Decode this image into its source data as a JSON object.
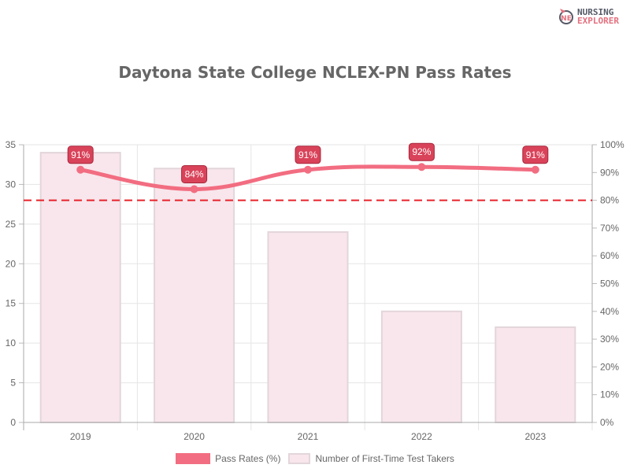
{
  "logo": {
    "line1": "NURSING",
    "line2": "EXPLORER"
  },
  "title": "Daytona State College NCLEX-PN Pass Rates",
  "legend": {
    "line_label": "Pass Rates (%)",
    "bar_label": "Number of First-Time Test Takers"
  },
  "colors": {
    "line": "#f26d81",
    "bar_fill": "#f8e6ec",
    "bar_border": "#e3d6da",
    "label_bg": "#d9435a",
    "reference": "#e8222b"
  },
  "chart_data": {
    "type": "bar+line",
    "title": "Daytona State College NCLEX-PN Pass Rates",
    "categories": [
      "2019",
      "2020",
      "2021",
      "2022",
      "2023"
    ],
    "series": [
      {
        "name": "Number of First-Time Test Takers",
        "type": "bar",
        "axis": "left",
        "values": [
          34,
          32,
          24,
          14,
          12
        ]
      },
      {
        "name": "Pass Rates (%)",
        "type": "line",
        "axis": "right",
        "values": [
          91,
          84,
          91,
          92,
          91
        ],
        "labels": [
          "91%",
          "84%",
          "91%",
          "92%",
          "91%"
        ]
      }
    ],
    "reference_line": {
      "axis": "right",
      "value": 80,
      "style": "dashed"
    },
    "left_axis": {
      "ylim": [
        0,
        35
      ],
      "ticks": [
        "0",
        "5",
        "10",
        "15",
        "20",
        "25",
        "30",
        "35"
      ]
    },
    "right_axis": {
      "ylim": [
        0,
        100
      ],
      "ticks": [
        "0%",
        "10%",
        "20%",
        "30%",
        "40%",
        "50%",
        "60%",
        "70%",
        "80%",
        "90%",
        "100%"
      ]
    },
    "xlabel": "",
    "ylabel": "",
    "grid": true,
    "legend_position": "bottom"
  }
}
